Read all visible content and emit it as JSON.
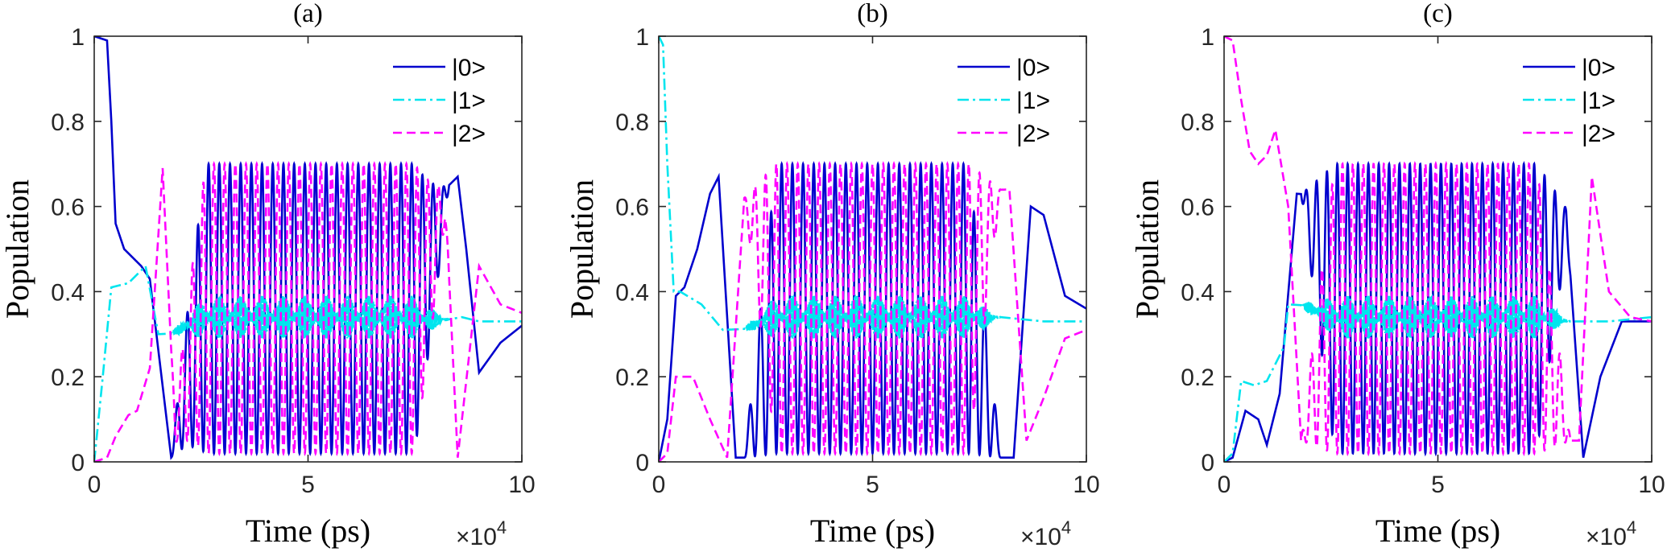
{
  "figure": {
    "x_exponent_prefix": "×10",
    "x_exponent_power": "4"
  },
  "colors": {
    "state0": "#0000CD",
    "state1": "#00E5EE",
    "state2": "#FF00FF"
  },
  "chart_data": [
    {
      "type": "line",
      "title": "(a)",
      "xlabel": "Time (ps)",
      "ylabel": "Population",
      "xlim": [
        0,
        10
      ],
      "ylim": [
        0,
        1
      ],
      "x_units_note": "×10^4",
      "xticks": [
        "0",
        "5",
        "10"
      ],
      "yticks": [
        "0",
        "0.2",
        "0.4",
        "0.6",
        "0.8",
        "1"
      ],
      "legend": {
        "position": "top-right",
        "entries": [
          "|0>",
          "|1>",
          "|2>"
        ]
      },
      "series": [
        {
          "name": "|0>",
          "style": "solid",
          "x": [
            0,
            0.3,
            0.4,
            0.5,
            0.7,
            1.0,
            1.1,
            1.3,
            1.8,
            8.5,
            8.7,
            9.0,
            9.5,
            10
          ],
          "y": [
            1,
            0.99,
            0.8,
            0.56,
            0.5,
            0.47,
            0.46,
            0.43,
            0.01,
            0.67,
            0.5,
            0.21,
            0.28,
            0.32
          ]
        },
        {
          "name": "|1>",
          "style": "dashdot",
          "x": [
            0,
            0.2,
            0.4,
            0.8,
            1.2,
            1.5,
            8.0,
            8.6,
            9.0,
            10
          ],
          "y": [
            0,
            0.2,
            0.41,
            0.42,
            0.46,
            0.3,
            0.33,
            0.34,
            0.33,
            0.33
          ]
        },
        {
          "name": "|2>",
          "style": "dashed",
          "x": [
            0,
            0.3,
            0.5,
            0.8,
            1.0,
            1.3,
            1.6,
            1.9,
            8.2,
            8.5,
            9.0,
            9.5,
            10
          ],
          "y": [
            0,
            0.01,
            0.06,
            0.11,
            0.12,
            0.22,
            0.69,
            0.05,
            0.64,
            0.01,
            0.46,
            0.37,
            0.35
          ]
        }
      ],
      "oscillation": {
        "x_start": 1.8,
        "x_end": 8.3,
        "periods": 26,
        "max": 0.7,
        "min": 0.02,
        "cyan_band": [
          0.29,
          0.39
        ]
      }
    },
    {
      "type": "line",
      "title": "(b)",
      "xlabel": "Time (ps)",
      "ylabel": "Population",
      "xlim": [
        0,
        10
      ],
      "ylim": [
        0,
        1
      ],
      "x_units_note": "×10^4",
      "xticks": [
        "0",
        "5",
        "10"
      ],
      "yticks": [
        "0",
        "0.2",
        "0.4",
        "0.6",
        "0.8",
        "1"
      ],
      "legend": {
        "position": "top-right",
        "entries": [
          "|0>",
          "|1>",
          "|2>"
        ]
      },
      "series": [
        {
          "name": "|0>",
          "style": "solid",
          "x": [
            0,
            0.2,
            0.4,
            0.6,
            0.9,
            1.2,
            1.4,
            1.8,
            8.3,
            8.7,
            9.0,
            9.5,
            10
          ],
          "y": [
            0,
            0.1,
            0.39,
            0.41,
            0.5,
            0.63,
            0.67,
            0.01,
            0.01,
            0.6,
            0.58,
            0.39,
            0.36
          ]
        },
        {
          "name": "|1>",
          "style": "dashdot",
          "x": [
            0,
            0.1,
            0.2,
            0.35,
            0.5,
            1.0,
            1.5,
            8.0,
            9.0,
            10
          ],
          "y": [
            1,
            0.98,
            0.7,
            0.4,
            0.4,
            0.37,
            0.31,
            0.34,
            0.33,
            0.33
          ]
        },
        {
          "name": "|2>",
          "style": "dashed",
          "x": [
            0,
            0.2,
            0.4,
            0.8,
            1.2,
            1.6,
            2.0,
            8.2,
            8.6,
            9.0,
            9.5,
            10
          ],
          "y": [
            0,
            0.02,
            0.2,
            0.2,
            0.1,
            0.01,
            0.62,
            0.64,
            0.05,
            0.15,
            0.29,
            0.31
          ]
        }
      ],
      "oscillation": {
        "x_start": 2.0,
        "x_end": 8.0,
        "periods": 24,
        "max": 0.7,
        "min": 0.02,
        "cyan_band": [
          0.29,
          0.39
        ]
      }
    },
    {
      "type": "line",
      "title": "(c)",
      "xlabel": "Time (ps)",
      "ylabel": "Population",
      "xlim": [
        0,
        10
      ],
      "ylim": [
        0,
        1
      ],
      "x_units_note": "×10^4",
      "xticks": [
        "0",
        "5",
        "10"
      ],
      "yticks": [
        "0",
        "0.2",
        "0.4",
        "0.6",
        "0.8",
        "1"
      ],
      "legend": {
        "position": "top-right",
        "entries": [
          "|0>",
          "|1>",
          "|2>"
        ]
      },
      "series": [
        {
          "name": "|0>",
          "style": "solid",
          "x": [
            0,
            0.2,
            0.5,
            0.8,
            1.0,
            1.3,
            1.7,
            8.0,
            8.4,
            8.8,
            9.3,
            10
          ],
          "y": [
            0,
            0.01,
            0.12,
            0.1,
            0.04,
            0.16,
            0.63,
            0.58,
            0.01,
            0.2,
            0.33,
            0.33
          ]
        },
        {
          "name": "|1>",
          "style": "dashdot",
          "x": [
            0,
            0.2,
            0.4,
            0.7,
            1.0,
            1.4,
            1.5,
            8.0,
            9.0,
            10
          ],
          "y": [
            0,
            0.02,
            0.19,
            0.18,
            0.19,
            0.27,
            0.37,
            0.33,
            0.33,
            0.34
          ]
        },
        {
          "name": "|2>",
          "style": "dashed",
          "x": [
            0,
            0.2,
            0.4,
            0.6,
            0.8,
            1.0,
            1.2,
            1.5,
            1.8,
            8.3,
            8.6,
            9.0,
            9.5,
            10
          ],
          "y": [
            1,
            0.99,
            0.85,
            0.73,
            0.7,
            0.72,
            0.78,
            0.6,
            0.05,
            0.05,
            0.67,
            0.4,
            0.34,
            0.33
          ]
        }
      ],
      "oscillation": {
        "x_start": 1.8,
        "x_end": 8.1,
        "periods": 26,
        "max": 0.7,
        "min": 0.02,
        "cyan_band": [
          0.29,
          0.39
        ]
      }
    }
  ]
}
